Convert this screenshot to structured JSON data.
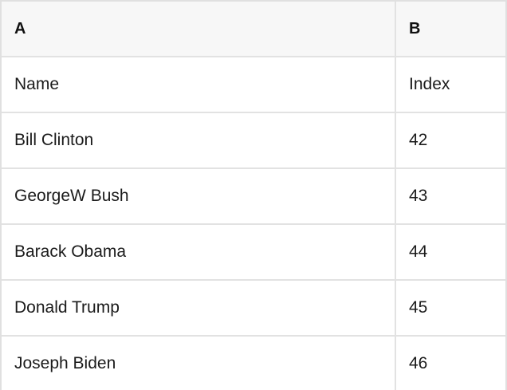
{
  "table": {
    "columns": [
      "A",
      "B"
    ],
    "rows": [
      {
        "a": "Name",
        "b": "Index"
      },
      {
        "a": "Bill Clinton",
        "b": "42"
      },
      {
        "a": "GeorgeW Bush",
        "b": "43"
      },
      {
        "a": "Barack Obama",
        "b": "44"
      },
      {
        "a": "Donald Trump",
        "b": "45"
      },
      {
        "a": "Joseph Biden",
        "b": "46"
      }
    ]
  },
  "colors": {
    "header_background": "#f7f7f7",
    "border": "#e0e0e0",
    "text": "#1b1b1b",
    "background": "#ffffff"
  }
}
